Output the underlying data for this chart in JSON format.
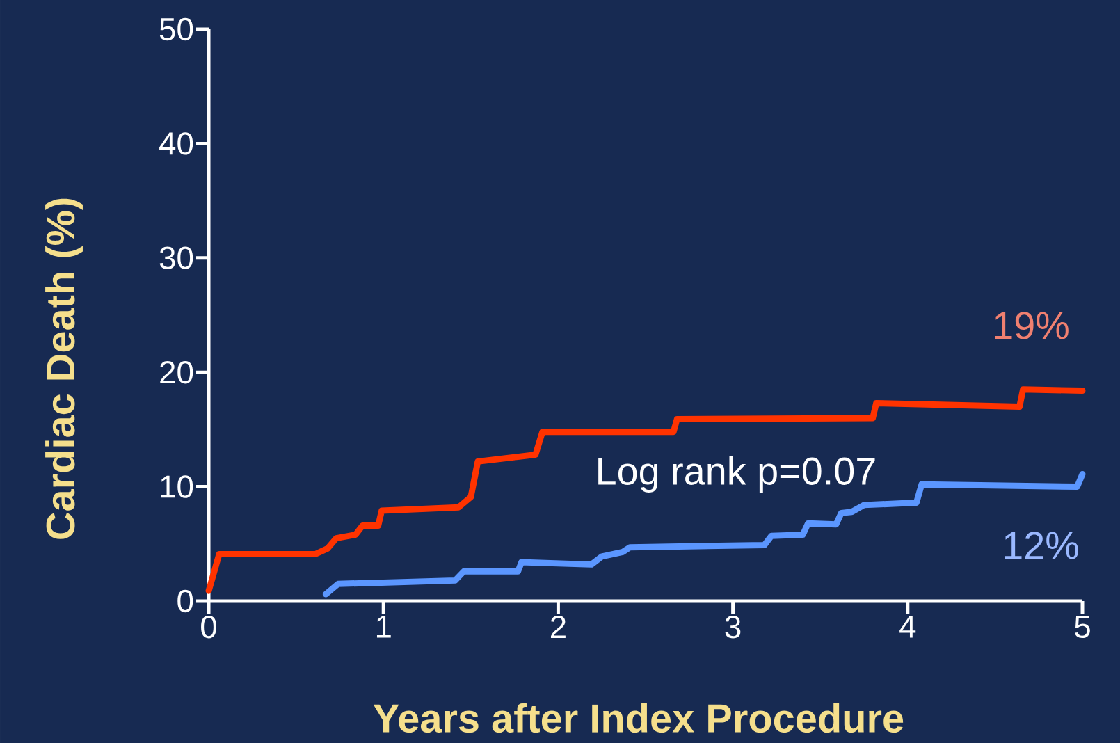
{
  "chart_data": {
    "type": "line",
    "xlabel": "Years after Index Procedure",
    "ylabel": "Cardiac Death (%)",
    "xlim": [
      0,
      5
    ],
    "ylim": [
      0,
      50
    ],
    "xticks": [
      0,
      1,
      2,
      3,
      4,
      5
    ],
    "yticks": [
      0,
      10,
      20,
      30,
      40,
      50
    ],
    "grid": false,
    "marker": "none",
    "line_style": "solid",
    "series": [
      {
        "color": "#ff3300",
        "x": [
          0,
          0.06,
          0.61,
          0.68,
          0.73,
          0.84,
          0.88,
          0.97,
          0.99,
          1.43,
          1.5,
          1.54,
          1.87,
          1.91,
          2.66,
          2.68,
          3.8,
          3.82,
          4.64,
          4.66,
          5
        ],
        "values": [
          0.9,
          4.1,
          4.1,
          4.6,
          5.5,
          5.8,
          6.6,
          6.6,
          7.9,
          8.2,
          9.1,
          12.2,
          12.8,
          14.8,
          14.8,
          15.9,
          16,
          17.3,
          17,
          18.5,
          18.4
        ]
      },
      {
        "color": "#5b96ff",
        "x": [
          0.67,
          0.74,
          1.41,
          1.46,
          1.77,
          1.79,
          2.19,
          2.25,
          2.37,
          2.41,
          3.18,
          3.22,
          3.4,
          3.43,
          3.59,
          3.62,
          3.68,
          3.75,
          4.05,
          4.08,
          4.97,
          5
        ],
        "values": [
          0.6,
          1.5,
          1.8,
          2.6,
          2.6,
          3.4,
          3.2,
          3.9,
          4.3,
          4.7,
          4.9,
          5.7,
          5.8,
          6.8,
          6.7,
          7.7,
          7.8,
          8.4,
          8.6,
          10.2,
          10,
          11.1
        ]
      }
    ],
    "annotations": [
      "19%",
      "Log rank p=0.07",
      "12%"
    ]
  }
}
